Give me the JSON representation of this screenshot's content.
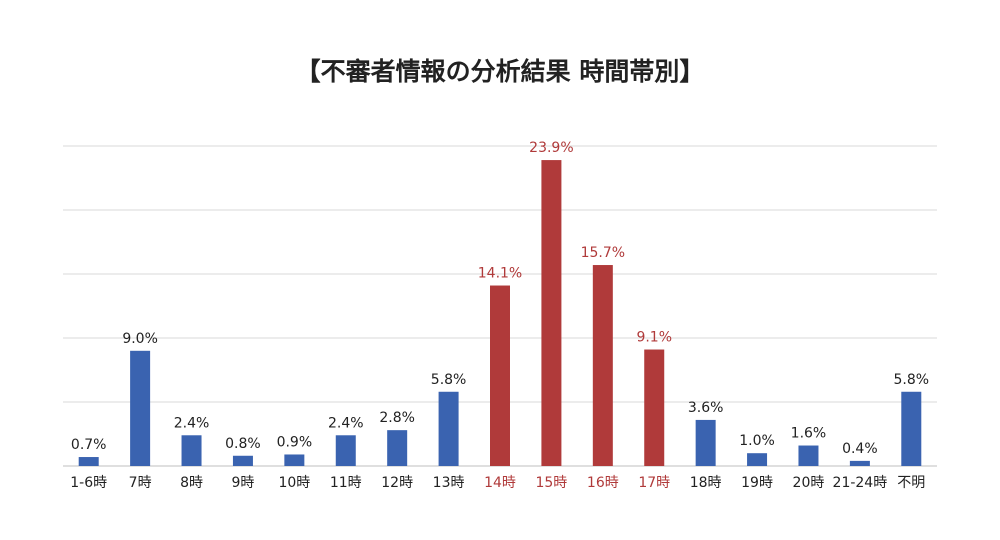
{
  "chart_data": {
    "type": "bar",
    "title": "【不審者情報の分析結果 時間帯別】",
    "categories": [
      "1-6時",
      "7時",
      "8時",
      "9時",
      "10時",
      "11時",
      "12時",
      "13時",
      "14時",
      "15時",
      "16時",
      "17時",
      "18時",
      "19時",
      "20時",
      "21-24時",
      "不明"
    ],
    "values": [
      0.7,
      9.0,
      2.4,
      0.8,
      0.9,
      2.4,
      2.8,
      5.8,
      14.1,
      23.9,
      15.7,
      9.1,
      3.6,
      1.0,
      1.6,
      0.4,
      5.8
    ],
    "value_labels": [
      "0.7%",
      "9.0%",
      "2.4%",
      "0.8%",
      "0.9%",
      "2.4%",
      "2.8%",
      "5.8%",
      "14.1%",
      "23.9%",
      "15.7%",
      "9.1%",
      "3.6%",
      "1.0%",
      "1.6%",
      "0.4%",
      "5.8%"
    ],
    "highlight": [
      false,
      false,
      false,
      false,
      false,
      false,
      false,
      false,
      true,
      true,
      true,
      true,
      false,
      false,
      false,
      false,
      false
    ],
    "unit": "%",
    "ylim": [
      0,
      25
    ],
    "y_gridlines": 5,
    "grid": true,
    "legend": "none",
    "colors": {
      "normal": "#3a63b0",
      "highlight": "#b03a3a",
      "highlight_text": "#b03a3a",
      "text": "#222222",
      "grid": "#d9d9d9"
    }
  }
}
